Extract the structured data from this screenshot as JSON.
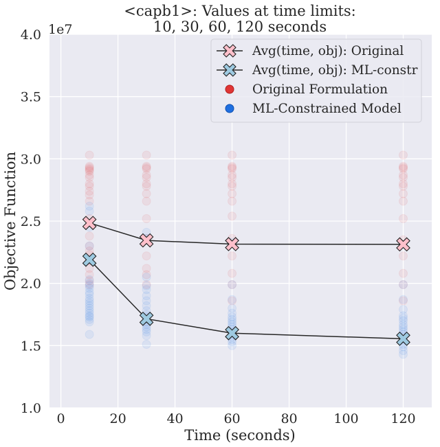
{
  "chart_data": {
    "type": "scatter",
    "title": "<capb1>: Values at time limits:",
    "subtitle": "10, 30, 60, 120 seconds",
    "xlabel": "Time (seconds)",
    "ylabel": "Objective Function",
    "y_offset_label": "1e7",
    "xlim": [
      -4,
      130
    ],
    "ylim": [
      1.0,
      4.0
    ],
    "xticks": [
      0,
      20,
      40,
      60,
      80,
      100,
      120
    ],
    "yticks": [
      1.0,
      1.5,
      2.0,
      2.5,
      3.0,
      3.5,
      4.0
    ],
    "xtick_labels": [
      "0",
      "20",
      "40",
      "60",
      "80",
      "100",
      "120"
    ],
    "ytick_labels": [
      "1.0",
      "1.5",
      "2.0",
      "2.5",
      "3.0",
      "3.5",
      "4.0"
    ],
    "grid": true,
    "legend_position": "top-right",
    "series": [
      {
        "name": "Avg(time, obj): Original",
        "kind": "line-marker",
        "color": "#ffc0cb",
        "x": [
          10,
          30,
          60,
          120
        ],
        "y": [
          2.485,
          2.345,
          2.315,
          2.313
        ]
      },
      {
        "name": "Avg(time, obj): ML-constr",
        "kind": "line-marker",
        "color": "#9ecae1",
        "x": [
          10,
          30,
          60,
          120
        ],
        "y": [
          2.19,
          1.715,
          1.6,
          1.555
        ]
      },
      {
        "name": "Original Formulation",
        "kind": "scatter",
        "color": "#e03535",
        "groups": [
          {
            "x": 10,
            "y": [
              3.03,
              2.94,
              2.93,
              2.92,
              2.91,
              2.9,
              2.87,
              2.85,
              2.8,
              2.78,
              2.74,
              2.71,
              2.66,
              2.52,
              2.38,
              2.3,
              2.26,
              2.23,
              2.18,
              2.12,
              2.07,
              2.02,
              1.99
            ]
          },
          {
            "x": 30,
            "y": [
              3.03,
              2.94,
              2.93,
              2.92,
              2.87,
              2.85,
              2.8,
              2.78,
              2.72,
              2.66,
              2.52,
              2.36,
              2.22,
              2.12,
              2.07,
              1.99
            ]
          },
          {
            "x": 60,
            "y": [
              3.03,
              2.94,
              2.93,
              2.92,
              2.87,
              2.85,
              2.8,
              2.78,
              2.72,
              2.66,
              2.54,
              2.36,
              2.22,
              2.08,
              1.99,
              1.86
            ]
          },
          {
            "x": 120,
            "y": [
              3.03,
              2.94,
              2.93,
              2.92,
              2.87,
              2.85,
              2.8,
              2.78,
              2.72,
              2.66,
              2.52,
              2.35,
              2.22,
              2.08,
              1.99,
              1.86
            ]
          }
        ]
      },
      {
        "name": "ML-Constrained Model",
        "kind": "scatter",
        "color": "#1f6fe0",
        "groups": [
          {
            "x": 10,
            "y": [
              2.62,
              2.58,
              2.45,
              2.3,
              2.19,
              2.03,
              2.0,
              1.98,
              1.96,
              1.93,
              1.91,
              1.88,
              1.86,
              1.84,
              1.82,
              1.8,
              1.78,
              1.76,
              1.74,
              1.73,
              1.71,
              1.69,
              1.59
            ]
          },
          {
            "x": 30,
            "y": [
              2.41,
              2.36,
              2.05,
              1.98,
              1.95,
              1.9,
              1.86,
              1.82,
              1.78,
              1.75,
              1.73,
              1.71,
              1.69,
              1.67,
              1.65,
              1.63,
              1.61,
              1.58,
              1.51
            ]
          },
          {
            "x": 60,
            "y": [
              2.33,
              1.99,
              1.87,
              1.8,
              1.76,
              1.73,
              1.71,
              1.69,
              1.67,
              1.65,
              1.63,
              1.61,
              1.59,
              1.57,
              1.55,
              1.53,
              1.5
            ]
          },
          {
            "x": 120,
            "y": [
              2.31,
              1.99,
              1.87,
              1.79,
              1.74,
              1.72,
              1.7,
              1.67,
              1.65,
              1.63,
              1.61,
              1.59,
              1.57,
              1.55,
              1.53,
              1.51,
              1.49,
              1.46,
              1.43
            ]
          }
        ]
      }
    ]
  }
}
